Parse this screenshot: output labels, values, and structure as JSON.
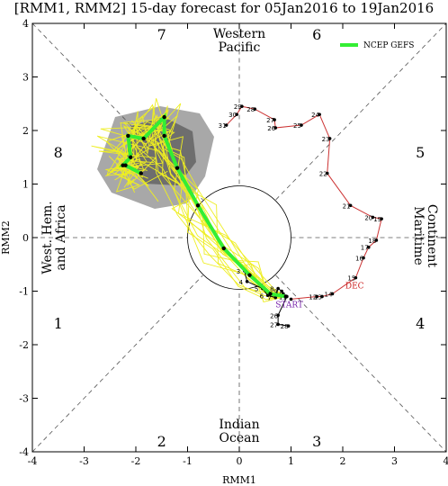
{
  "chart_data": {
    "type": "scatter",
    "title": "[RMM1, RMM2] 15-day forecast for 05Jan2016 to 19Jan2016",
    "xlabel": "RMM1",
    "ylabel": "RMM2",
    "xlim": [
      -4,
      4
    ],
    "ylim": [
      -4,
      4
    ],
    "ticks": [
      -4,
      -3,
      -2,
      -1,
      0,
      1,
      2,
      3,
      4
    ],
    "phases": [
      {
        "label": "1",
        "x": -3.5,
        "y": -1.6
      },
      {
        "label": "2",
        "x": -1.5,
        "y": -3.8
      },
      {
        "label": "3",
        "x": 1.5,
        "y": -3.8
      },
      {
        "label": "4",
        "x": 3.5,
        "y": -1.6
      },
      {
        "label": "5",
        "x": 3.5,
        "y": 1.6
      },
      {
        "label": "6",
        "x": 1.5,
        "y": 3.8
      },
      {
        "label": "7",
        "x": -1.5,
        "y": 3.8
      },
      {
        "label": "8",
        "x": -3.5,
        "y": 1.6
      }
    ],
    "regions": {
      "top": [
        "Western",
        "Pacific"
      ],
      "bottom": [
        "Indian",
        "Ocean"
      ],
      "left": [
        "West. Hem.",
        "and Africa"
      ],
      "right": [
        "Maritime",
        "Continent"
      ]
    },
    "legend": {
      "label": "NCEP GEFS",
      "color": "#33ee33"
    },
    "annotations": [
      {
        "text": "DEC",
        "x": 2.05,
        "y": -0.95,
        "color": "#cc2222"
      },
      {
        "text": "START",
        "x": 0.7,
        "y": -1.3,
        "color": "#7722aa"
      }
    ],
    "observed_dec": {
      "color": "#cc3333",
      "points": [
        {
          "day": "",
          "x": 1.0,
          "y": -1.15
        },
        {
          "day": "12",
          "x": 1.5,
          "y": -1.1
        },
        {
          "day": "13",
          "x": 1.6,
          "y": -1.1
        },
        {
          "day": "14",
          "x": 1.8,
          "y": -1.05
        },
        {
          "day": "15",
          "x": 2.25,
          "y": -0.75
        },
        {
          "day": "16",
          "x": 2.4,
          "y": -0.38
        },
        {
          "day": "17",
          "x": 2.5,
          "y": -0.18
        },
        {
          "day": "18",
          "x": 2.65,
          "y": -0.05
        },
        {
          "day": "19",
          "x": 2.75,
          "y": 0.35
        },
        {
          "day": "20",
          "x": 2.58,
          "y": 0.38
        },
        {
          "day": "21",
          "x": 2.15,
          "y": 0.6
        },
        {
          "day": "22",
          "x": 1.7,
          "y": 1.2
        },
        {
          "day": "23",
          "x": 1.75,
          "y": 1.85
        },
        {
          "day": "24",
          "x": 1.55,
          "y": 2.3
        },
        {
          "day": "25",
          "x": 1.2,
          "y": 2.1
        },
        {
          "day": "26",
          "x": 0.7,
          "y": 2.05
        },
        {
          "day": "27",
          "x": 0.68,
          "y": 2.2
        },
        {
          "day": "28",
          "x": 0.3,
          "y": 2.4
        },
        {
          "day": "29",
          "x": 0.05,
          "y": 2.45
        },
        {
          "day": "30",
          "x": -0.05,
          "y": 2.3
        },
        {
          "day": "31",
          "x": -0.25,
          "y": 2.1
        }
      ]
    },
    "observed_jan": {
      "color": "#000000",
      "points": [
        {
          "day": "3",
          "x": 0.1,
          "y": -0.62
        },
        {
          "day": "4",
          "x": 0.15,
          "y": -0.82
        },
        {
          "day": "5",
          "x": 0.45,
          "y": -0.95
        },
        {
          "day": "6",
          "x": 0.55,
          "y": -1.08
        },
        {
          "day": "7",
          "x": 0.7,
          "y": -1.12
        },
        {
          "day": "8",
          "x": 0.75,
          "y": -0.95
        },
        {
          "day": "9",
          "x": 0.82,
          "y": -1.0
        },
        {
          "day": "10",
          "x": 0.85,
          "y": -1.05
        },
        {
          "day": "11",
          "x": 0.92,
          "y": -1.1
        },
        {
          "day": "26",
          "x": 0.75,
          "y": -1.45
        },
        {
          "day": "27",
          "x": 0.75,
          "y": -1.62
        },
        {
          "day": "28",
          "x": 0.95,
          "y": -1.65
        }
      ]
    },
    "forecast_mean": {
      "name": "NCEP GEFS",
      "color": "#33ee33",
      "x": [
        0.9,
        0.6,
        0.2,
        -0.3,
        -0.8,
        -1.2,
        -1.45,
        -1.45,
        -1.85,
        -2.15,
        -2.1,
        -2.25,
        -2.2,
        -1.9
      ],
      "y": [
        -1.1,
        -1.05,
        -0.7,
        -0.2,
        0.6,
        1.3,
        1.9,
        2.25,
        1.85,
        1.9,
        1.5,
        1.35,
        1.35,
        1.2
      ]
    }
  }
}
